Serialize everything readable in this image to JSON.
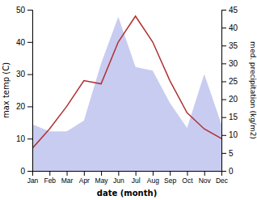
{
  "chart_data": {
    "type": "line",
    "xlabel": "date (month)",
    "ylabel": "max temp (C)",
    "y2label": "med. precipitation (kg/m2)",
    "categories": [
      "Jan",
      "Feb",
      "Mar",
      "Apr",
      "May",
      "Jun",
      "Jul",
      "Aug",
      "Sep",
      "Oct",
      "Nov",
      "Dec"
    ],
    "series": [
      {
        "type": "area",
        "axis": "y2",
        "color": "#c8ccf0",
        "values": [
          13,
          11,
          11,
          14,
          30,
          43,
          29,
          28,
          19,
          12,
          27,
          13
        ]
      },
      {
        "type": "line",
        "color": "#b03030",
        "values": [
          7,
          13,
          20,
          28,
          27,
          40,
          48,
          40,
          28,
          18,
          13,
          10
        ]
      }
    ],
    "ylim": [
      0,
      50
    ],
    "yticks": [
      0,
      10,
      20,
      30,
      40,
      50
    ],
    "y2lim": [
      0,
      45
    ],
    "y2ticks": [
      0,
      5,
      10,
      15,
      20,
      25,
      30,
      35,
      40,
      45
    ]
  }
}
